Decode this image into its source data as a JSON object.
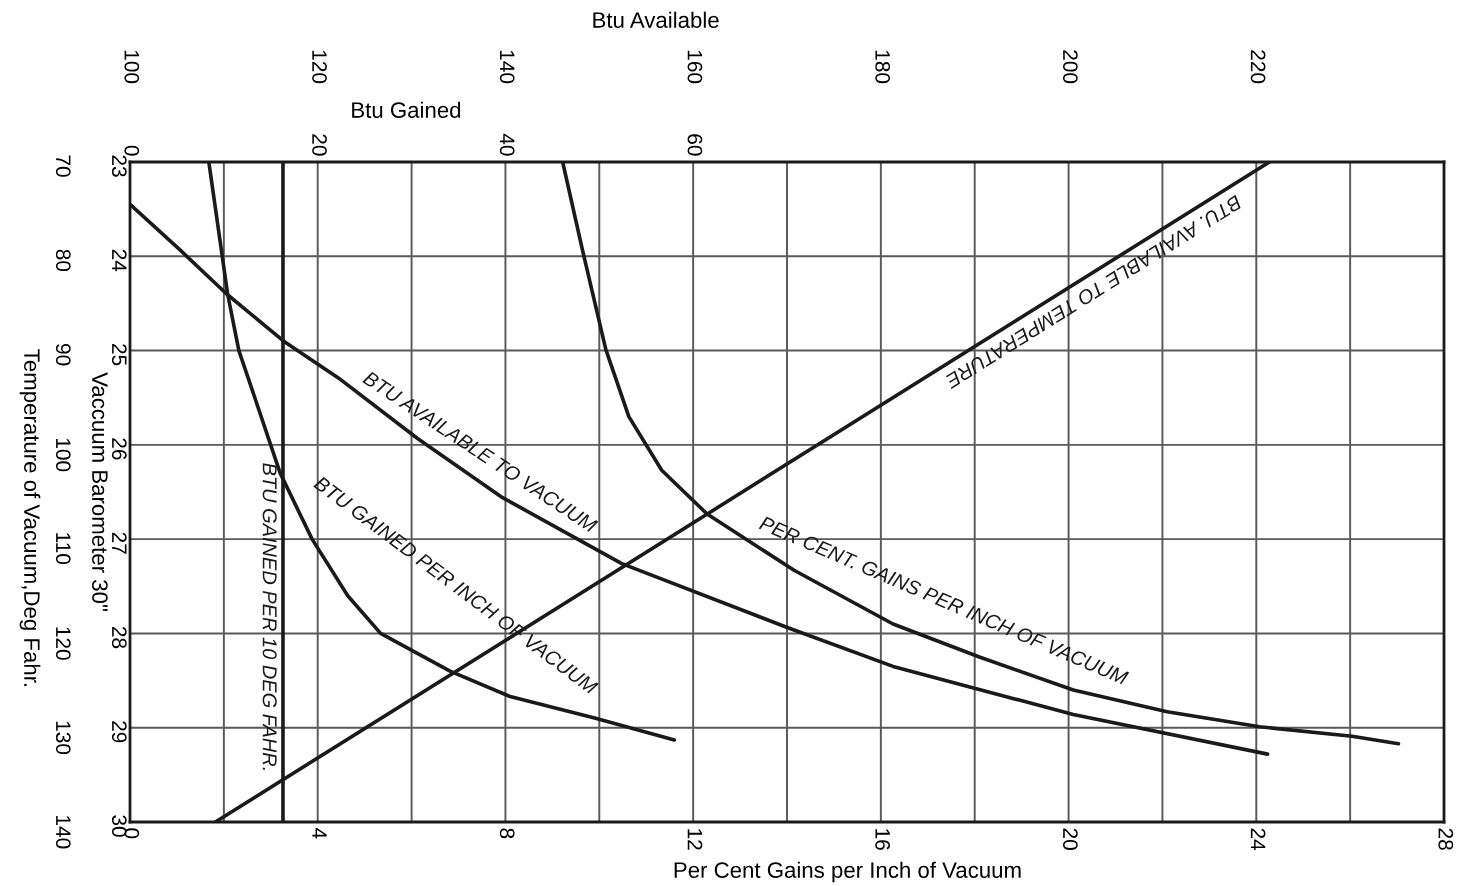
{
  "chart_data": [
    {
      "type": "line",
      "xlabel": "Btu Available",
      "ylabel": "Vaccuum Barometer 30\"",
      "x2label": "Per Cent Gains per Inch of Vacuum",
      "y2label": "Temperature of Vacuum,Deg Fahr.",
      "xlim": [
        100,
        240
      ],
      "xticks": [
        100,
        {
          "value": 110,
          "label": null
        },
        120,
        {
          "value": 130,
          "label": null
        },
        140,
        {
          "value": 150,
          "label": null
        },
        160,
        {
          "value": 170,
          "label": null
        },
        180,
        {
          "value": 190,
          "label": null
        },
        200,
        {
          "value": 210,
          "label": null
        },
        220,
        {
          "value": 230,
          "label": null
        }
      ],
      "ylim": [
        30,
        23
      ],
      "yticks": [
        23,
        24,
        25,
        26,
        27,
        28,
        29,
        30
      ],
      "x2lim": [
        0,
        28
      ],
      "x2ticks": [
        0,
        4,
        8,
        12,
        16,
        20,
        24,
        28
      ],
      "y2lim": [
        140,
        70
      ],
      "y2ticks": [
        70,
        80,
        90,
        100,
        110,
        120,
        130,
        140
      ],
      "grid": true,
      "legend": false,
      "marker": "none",
      "line_style": "solid",
      "series": [
        {
          "name": "BTU AVAILABLE TO VACUUM",
          "color": "#1a1a1a",
          "x": [
            100,
            105.3,
            110.3,
            116.5,
            122.2,
            130.6,
            139.7,
            152.4,
            170.1,
            181.3,
            200.5,
            221.2
          ],
          "values": [
            23.45,
            23.93,
            24.4,
            24.91,
            25.29,
            25.93,
            26.56,
            27.26,
            27.94,
            28.35,
            28.86,
            29.28
          ]
        },
        {
          "name": "PER CENT. GAINS PER INCH OF VACUUM",
          "axis": "x2",
          "color": "#1a1a1a",
          "x": [
            9.22,
            9.64,
            10.14,
            10.63,
            11.33,
            12.29,
            14.15,
            16.26,
            18.1,
            20.1,
            22.1,
            24.07,
            26.04,
            27.03
          ],
          "values": [
            23.0,
            23.93,
            24.99,
            25.7,
            26.27,
            26.73,
            27.33,
            27.9,
            28.25,
            28.6,
            28.83,
            28.99,
            29.09,
            29.17
          ]
        },
        {
          "name": "BTU. AVAILABLE TO TEMPERATURE",
          "axis": "y2",
          "color": "#1a1a1a",
          "x": [
            109.1,
            221.4
          ],
          "values": [
            140,
            70
          ]
        }
      ]
    },
    {
      "type": "line",
      "xlabel": "Btu Gained",
      "xlim": [
        0,
        140
      ],
      "xticks": [
        0,
        20,
        40,
        60
      ],
      "ylim": [
        30,
        23
      ],
      "tick_labels": "x",
      "legend": false,
      "marker": "none",
      "line_style": "solid",
      "ref_lines": [
        {
          "axis": "x",
          "value": 16.3,
          "label": "BTU GAINED PER 10 DEG FAHR.",
          "color": "#1a1a1a"
        }
      ],
      "series": [
        {
          "name": "BTU GAINED PER INCH OF VACUUM",
          "color": "#1a1a1a",
          "x": [
            8.4,
            9.4,
            10.4,
            11.6,
            13.3,
            16.0,
            19.4,
            23.2,
            26.7,
            34.1,
            40.5,
            49.6,
            58.0
          ],
          "values": [
            23.0,
            23.7,
            24.4,
            25.0,
            25.5,
            26.3,
            27.0,
            27.6,
            28.0,
            28.4,
            28.67,
            28.9,
            29.13
          ]
        }
      ]
    }
  ]
}
